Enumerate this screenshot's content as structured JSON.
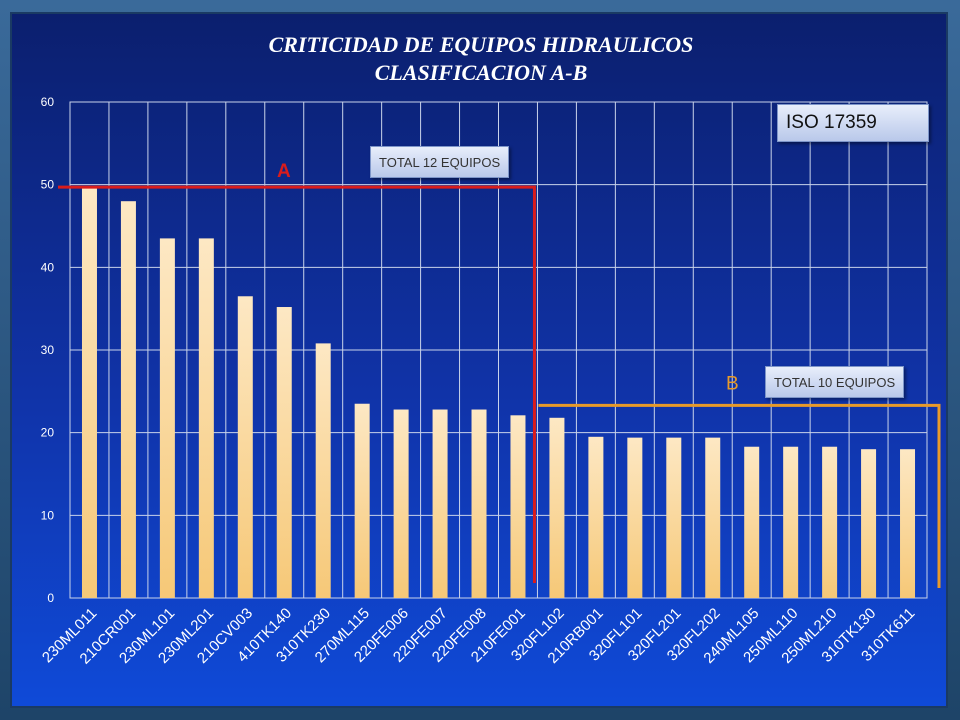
{
  "chart_data": {
    "type": "bar",
    "title": "CRITICIDAD DE EQUIPOS HIDRAULICOS",
    "subtitle": "CLASIFICACION A-B",
    "xlabel": "",
    "ylabel": "",
    "ylim": [
      0,
      60
    ],
    "yticks": [
      "0",
      "10",
      "20",
      "30",
      "40",
      "50",
      "60"
    ],
    "grid": true,
    "categories": [
      "230ML011",
      "210CR001",
      "230ML101",
      "230ML201",
      "210CV003",
      "410TK140",
      "310TK230",
      "270ML115",
      "220FE006",
      "220FE007",
      "220FE008",
      "210FE001",
      "320FL102",
      "210RB001",
      "320FL101",
      "320FL201",
      "320FL202",
      "240ML105",
      "250ML110",
      "250ML210",
      "310TK130",
      "310TK611"
    ],
    "values": [
      49.7,
      48,
      43.5,
      43.5,
      36.5,
      35.2,
      30.8,
      23.5,
      22.8,
      22.8,
      22.8,
      22.1,
      21.8,
      19.5,
      19.4,
      19.4,
      19.4,
      18.3,
      18.3,
      18.3,
      18.0,
      18.0
    ],
    "bar_color": "#f6c877",
    "annotations": {
      "class_a_label": "A",
      "class_b_label": "B",
      "class_a_total": "TOTAL 12 EQUIPOS",
      "class_b_total": "TOTAL 10 EQUIPOS",
      "standard": "ISO  17359",
      "class_a_level": 49.7,
      "class_b_level": 23.3,
      "class_a_color": "#d91c1c",
      "class_b_color": "#e89a2a"
    }
  }
}
